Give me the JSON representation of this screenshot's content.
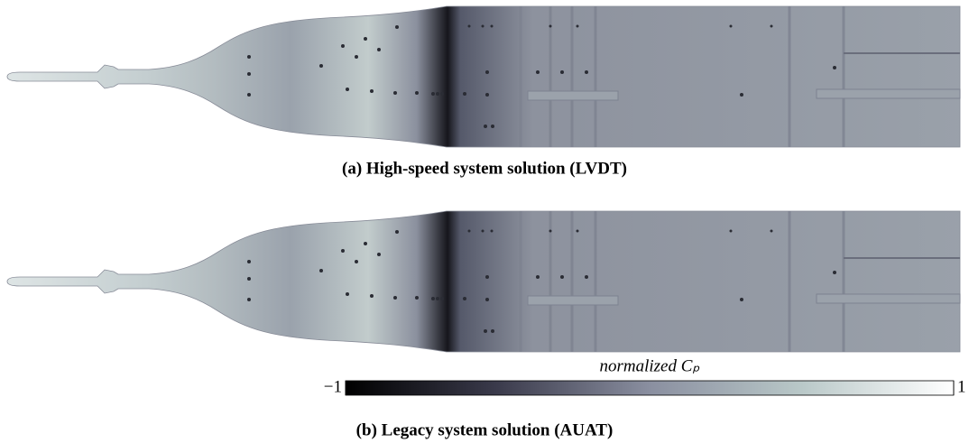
{
  "figure": {
    "panels": [
      {
        "caption": "(a) High-speed system solution (LVDT)"
      },
      {
        "caption": "(b) Legacy system solution (AUAT)"
      }
    ],
    "colorbar": {
      "label": "normalized Cₚ",
      "range": [
        -1,
        1
      ],
      "ticks": [
        {
          "value": -1,
          "label": "−1"
        },
        1
      ]
    }
  }
}
